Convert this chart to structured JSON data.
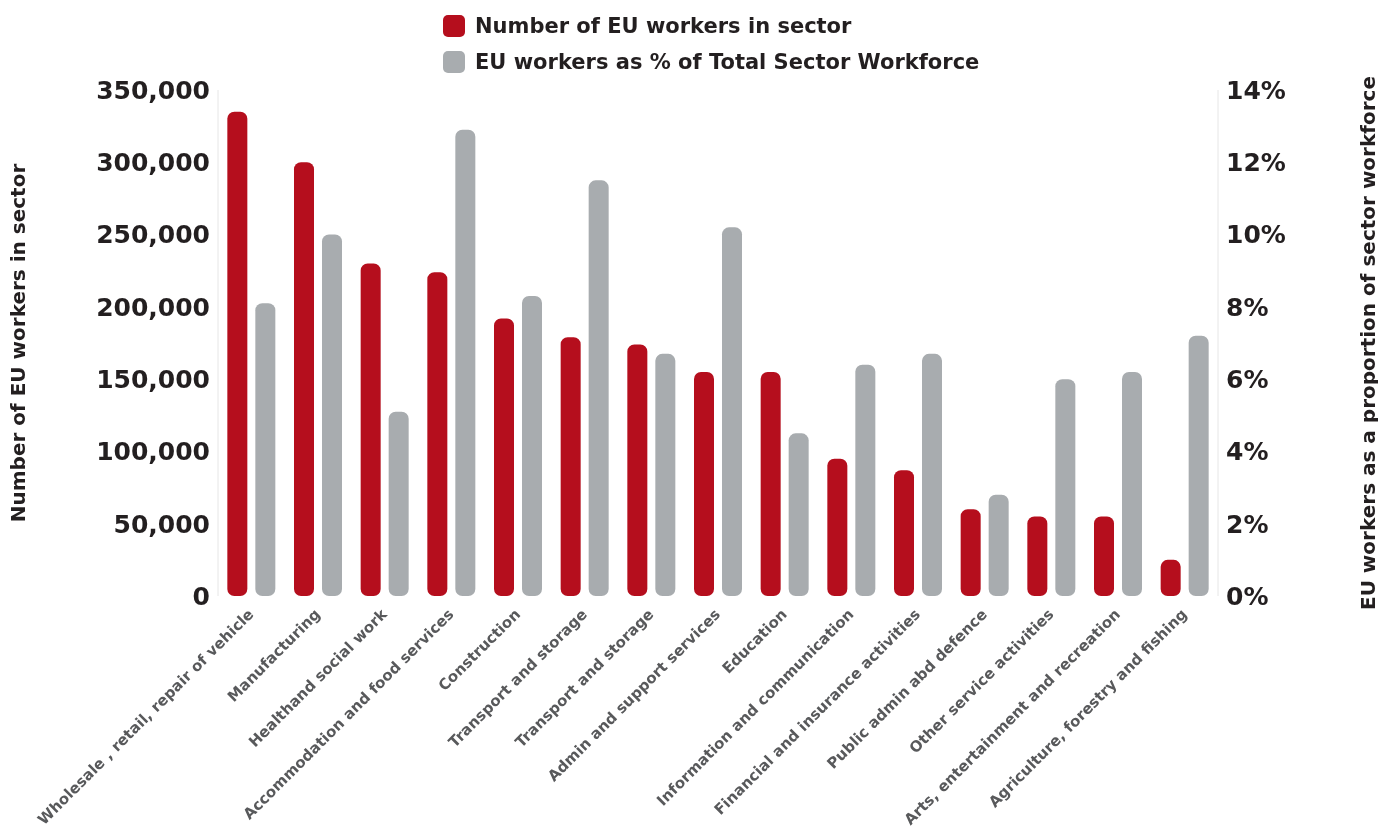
{
  "chart_data": {
    "type": "bar",
    "categories": [
      "Wholesale , retail, repair of vehicle",
      "Manufacturing",
      "Healthand social work",
      "Accommodation and food services",
      "Construction",
      "Transport and storage",
      "Transport and storage",
      "Admin and support services",
      "Education",
      "Information and communication",
      "Financial and insurance activities",
      "Public admin abd defence",
      "Other service activities",
      "Arts, entertainment and recreation",
      "Agriculture, forestry and fishing"
    ],
    "series": [
      {
        "name": "Number of EU workers in sector",
        "color": "#b50e1d",
        "values": [
          335000,
          300000,
          230000,
          224000,
          192000,
          179000,
          174000,
          155000,
          155000,
          95000,
          87000,
          60000,
          55000,
          55000,
          25000
        ]
      },
      {
        "name": "EU workers as % of Total Sector Workforce",
        "color": "#a8acaf",
        "axis": "y2",
        "values": [
          8.1,
          10.0,
          5.1,
          12.9,
          8.3,
          11.5,
          6.7,
          10.2,
          4.5,
          6.4,
          6.7,
          2.8,
          6.0,
          6.2,
          7.2
        ]
      }
    ],
    "ylabel": "Number of EU workers in sector",
    "y2label": "EU workers as a proportion of sector workforce",
    "ylim": [
      0,
      350000
    ],
    "yticks": [
      {
        "value": 0,
        "label": "0"
      },
      {
        "value": 50000,
        "label": "50,000"
      },
      {
        "value": 100000,
        "label": "100,000"
      },
      {
        "value": 150000,
        "label": "150,000"
      },
      {
        "value": 200000,
        "label": "200,000"
      },
      {
        "value": 250000,
        "label": "250,000"
      },
      {
        "value": 300000,
        "label": "300,000"
      },
      {
        "value": 350000,
        "label": "350,000"
      }
    ],
    "y2lim": [
      0,
      14
    ],
    "y2ticks": [
      {
        "value": 0,
        "label": "0%"
      },
      {
        "value": 2,
        "label": "2%"
      },
      {
        "value": 4,
        "label": "4%"
      },
      {
        "value": 6,
        "label": "6%"
      },
      {
        "value": 8,
        "label": "8%"
      },
      {
        "value": 10,
        "label": "10%"
      },
      {
        "value": 12,
        "label": "12%"
      },
      {
        "value": 14,
        "label": "14%"
      }
    ],
    "grid": false,
    "legend": "top"
  }
}
